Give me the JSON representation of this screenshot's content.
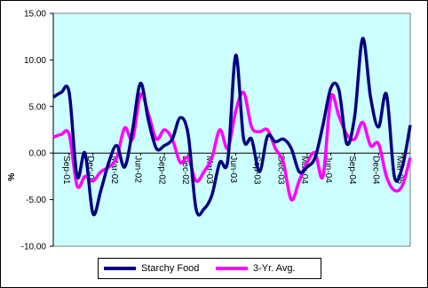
{
  "chart_data": {
    "type": "line",
    "ylabel": "%",
    "ylim": [
      -10,
      15
    ],
    "yticks": [
      "15.00",
      "10.00",
      "5.00",
      "0.00",
      "-5.00",
      "-10.00"
    ],
    "ytick_values": [
      15,
      10,
      5,
      0,
      -5,
      -10
    ],
    "xtick_labels": [
      "Sep-01",
      "Dec-01",
      "Mar-02",
      "Jun-02",
      "Sep-02",
      "Dec-02",
      "Mar-03",
      "Jun-03",
      "Sep-03",
      "Dec-03",
      "Mar-04",
      "Jun-04",
      "Sep-04",
      "Dec-04",
      "Mar-05"
    ],
    "x": [
      "Jul-01",
      "Aug-01",
      "Sep-01",
      "Oct-01",
      "Nov-01",
      "Dec-01",
      "Jan-02",
      "Feb-02",
      "Mar-02",
      "Apr-02",
      "May-02",
      "Jun-02",
      "Jul-02",
      "Aug-02",
      "Sep-02",
      "Oct-02",
      "Nov-02",
      "Dec-02",
      "Jan-03",
      "Feb-03",
      "Mar-03",
      "Apr-03",
      "May-03",
      "Jun-03",
      "Jul-03",
      "Aug-03",
      "Sep-03",
      "Oct-03",
      "Nov-03",
      "Dec-03",
      "Jan-04",
      "Feb-04",
      "Mar-04",
      "Apr-04",
      "May-04",
      "Jun-04",
      "Jul-04",
      "Aug-04",
      "Sep-04",
      "Oct-04",
      "Nov-04",
      "Dec-04",
      "Jan-05",
      "Feb-05",
      "Mar-05",
      "Apr-05"
    ],
    "grid": false,
    "legend_position": "bottom",
    "plot_background": "#ccffff",
    "series": [
      {
        "name": "Starchy Food",
        "color": "#000080",
        "values": [
          6.0,
          6.5,
          6.5,
          -2.5,
          0.0,
          -6.5,
          -4.0,
          -1.0,
          0.8,
          -1.5,
          2.5,
          7.5,
          3.5,
          0.5,
          0.8,
          1.5,
          3.8,
          2.0,
          -6.0,
          -6.0,
          -4.5,
          -1.0,
          -0.8,
          10.5,
          1.5,
          1.5,
          -2.0,
          1.8,
          1.2,
          1.5,
          0.5,
          -2.0,
          -1.5,
          -0.5,
          3.0,
          7.0,
          6.8,
          1.0,
          4.0,
          12.3,
          6.0,
          2.8,
          6.3,
          -2.5,
          -1.5,
          3.0
        ]
      },
      {
        "name": "3-Yr. Avg.",
        "color": "#ff00ff",
        "values": [
          1.7,
          2.0,
          2.0,
          -3.5,
          -2.5,
          -3.0,
          -2.0,
          -1.5,
          -0.5,
          2.7,
          1.5,
          6.3,
          4.2,
          1.5,
          2.5,
          1.5,
          -1.0,
          -0.5,
          -3.0,
          -2.0,
          -0.5,
          2.5,
          0.5,
          4.5,
          6.5,
          2.8,
          2.3,
          2.5,
          0.5,
          -1.0,
          -5.0,
          -3.0,
          -1.0,
          0.0,
          -2.5,
          6.0,
          4.0,
          2.0,
          1.5,
          3.3,
          0.8,
          1.0,
          -2.5,
          -4.0,
          -3.5,
          -0.5
        ]
      }
    ]
  }
}
